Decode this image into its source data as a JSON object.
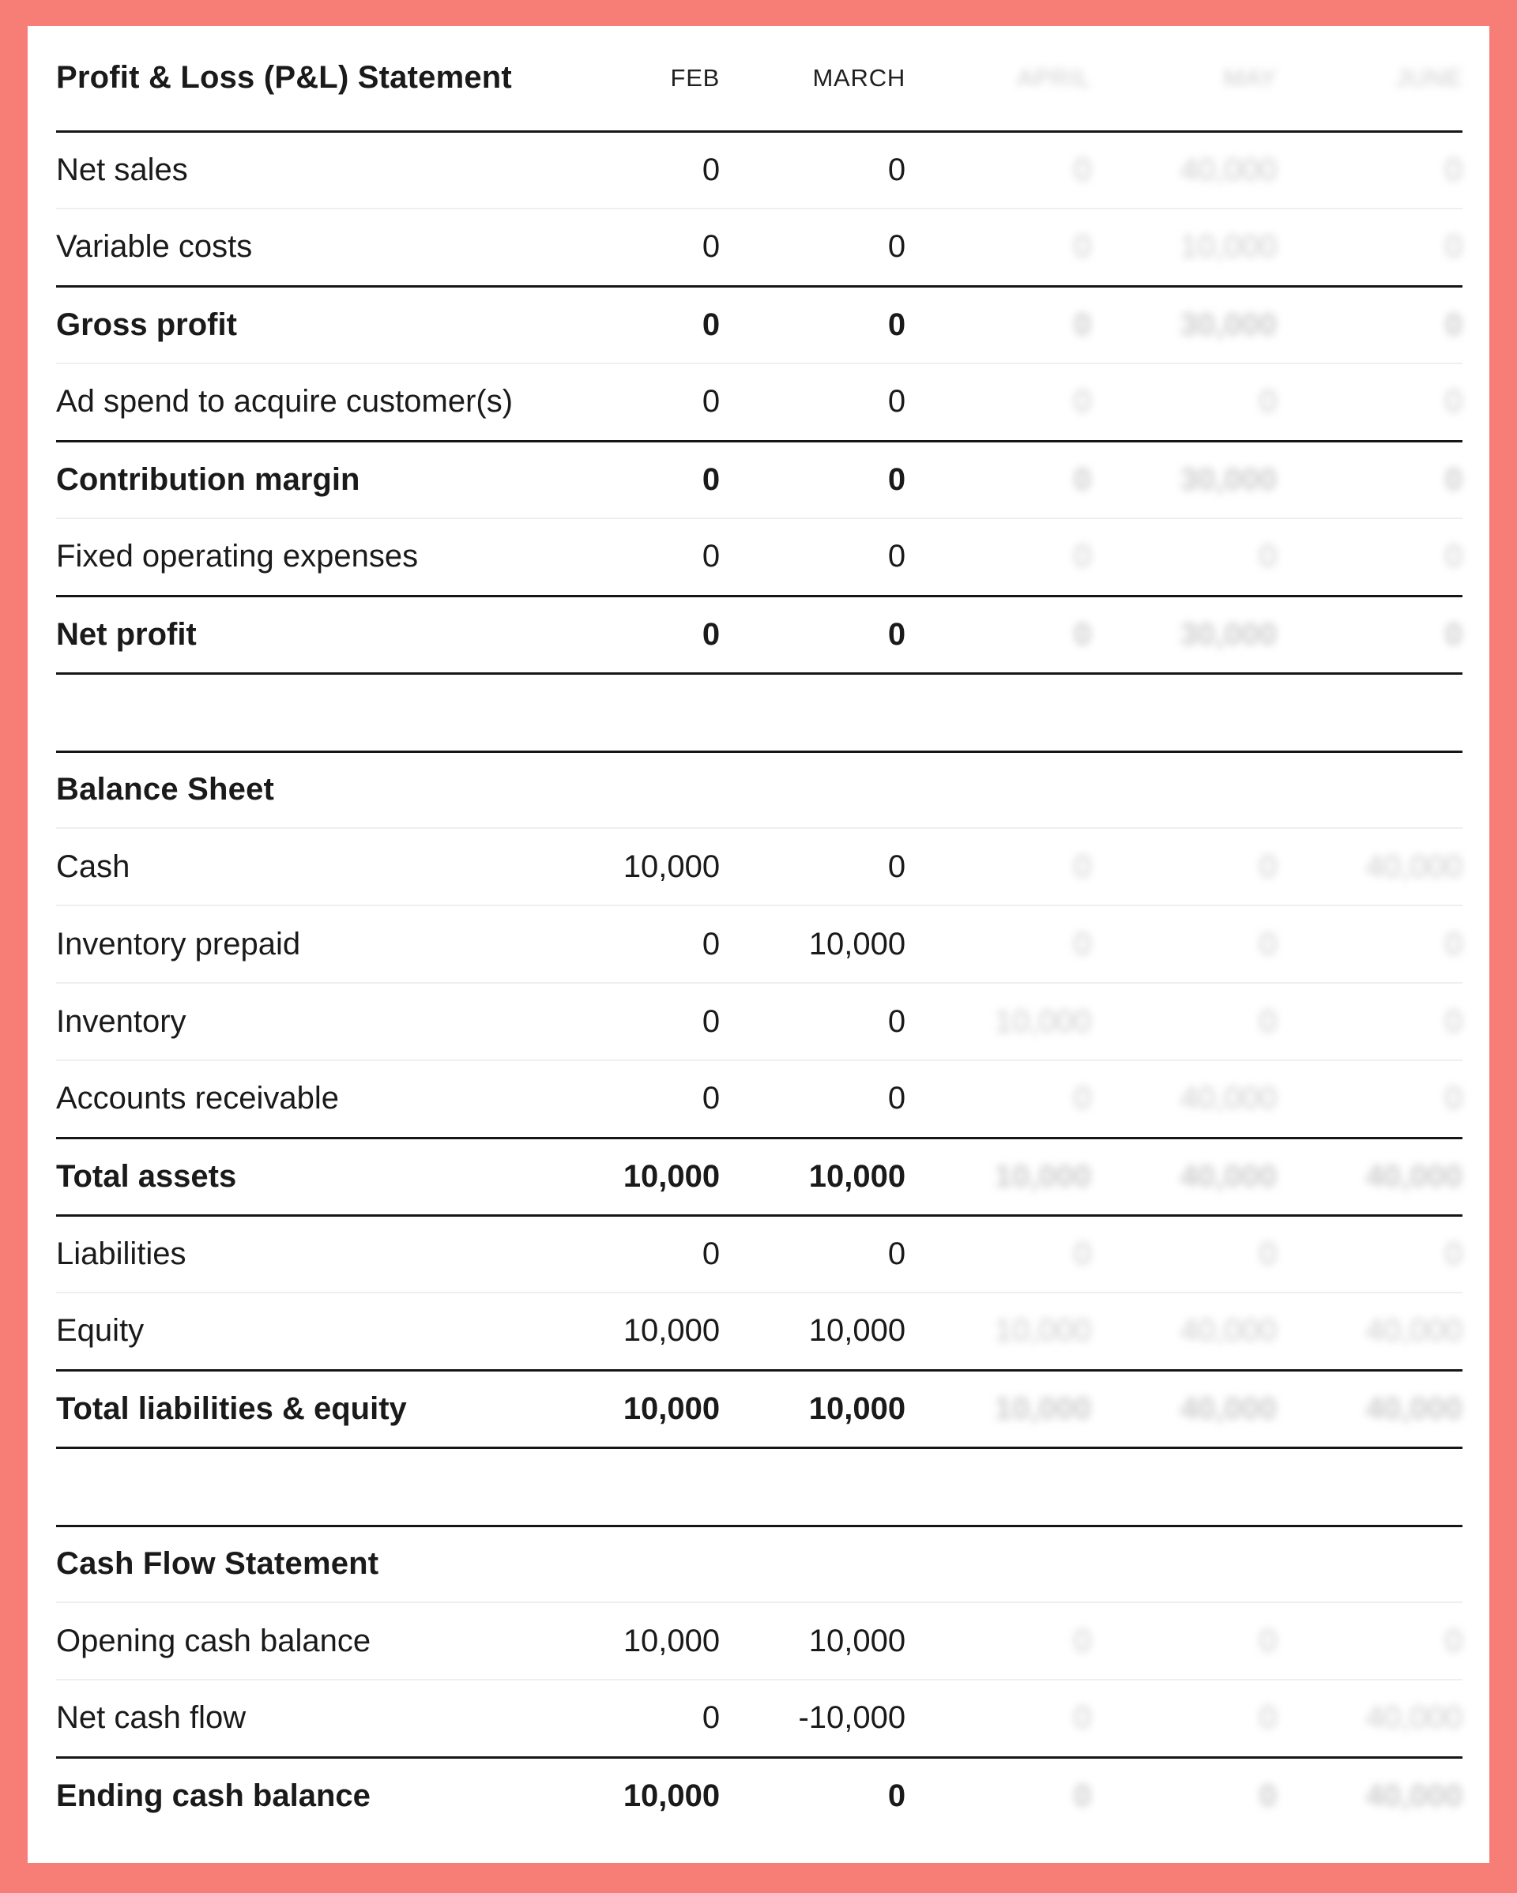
{
  "frame": {
    "border_color": "#f77d77",
    "panel_color": "#ffffff"
  },
  "colors": {
    "text": "#1a1a1a",
    "thick_rule": "#161616",
    "thin_rule": "#efefef",
    "blurred_text": "#c5c5c5"
  },
  "columns": [
    "FEB",
    "MARCH",
    "APRIL",
    "MAY",
    "JUNE"
  ],
  "blurred_columns": [
    "APRIL",
    "MAY",
    "JUNE"
  ],
  "sections": [
    {
      "title": "Profit & Loss (P&L) Statement",
      "show_column_headers": true,
      "rows": [
        {
          "label": "Net sales",
          "bold": false,
          "divider": "thin",
          "values": [
            "0",
            "0",
            "0",
            "40,000",
            "0"
          ]
        },
        {
          "label": "Variable costs",
          "bold": false,
          "divider": "thick",
          "values": [
            "0",
            "0",
            "0",
            "10,000",
            "0"
          ]
        },
        {
          "label": "Gross profit",
          "bold": true,
          "divider": "thin",
          "values": [
            "0",
            "0",
            "0",
            "30,000",
            "0"
          ]
        },
        {
          "label": "Ad spend to acquire customer(s)",
          "bold": false,
          "divider": "thick",
          "values": [
            "0",
            "0",
            "0",
            "0",
            "0"
          ]
        },
        {
          "label": "Contribution margin",
          "bold": true,
          "divider": "thin",
          "values": [
            "0",
            "0",
            "0",
            "30,000",
            "0"
          ]
        },
        {
          "label": "Fixed operating expenses",
          "bold": false,
          "divider": "thick",
          "values": [
            "0",
            "0",
            "0",
            "0",
            "0"
          ]
        },
        {
          "label": "Net profit",
          "bold": true,
          "divider": "thick",
          "values": [
            "0",
            "0",
            "0",
            "30,000",
            "0"
          ]
        }
      ]
    },
    {
      "title": "Balance Sheet",
      "show_column_headers": false,
      "rows": [
        {
          "label": "Cash",
          "bold": false,
          "divider": "thin",
          "values": [
            "10,000",
            "0",
            "0",
            "0",
            "40,000"
          ]
        },
        {
          "label": "Inventory prepaid",
          "bold": false,
          "divider": "thin",
          "values": [
            "0",
            "10,000",
            "0",
            "0",
            "0"
          ]
        },
        {
          "label": "Inventory",
          "bold": false,
          "divider": "thin",
          "values": [
            "0",
            "0",
            "10,000",
            "0",
            "0"
          ]
        },
        {
          "label": "Accounts receivable",
          "bold": false,
          "divider": "thick",
          "values": [
            "0",
            "0",
            "0",
            "40,000",
            "0"
          ]
        },
        {
          "label": "Total assets",
          "bold": true,
          "divider": "thick",
          "values": [
            "10,000",
            "10,000",
            "10,000",
            "40,000",
            "40,000"
          ]
        },
        {
          "label": "Liabilities",
          "bold": false,
          "divider": "thin",
          "values": [
            "0",
            "0",
            "0",
            "0",
            "0"
          ]
        },
        {
          "label": "Equity",
          "bold": false,
          "divider": "thick",
          "values": [
            "10,000",
            "10,000",
            "10,000",
            "40,000",
            "40,000"
          ]
        },
        {
          "label": "Total liabilities & equity",
          "bold": true,
          "divider": "thick",
          "values": [
            "10,000",
            "10,000",
            "10,000",
            "40,000",
            "40,000"
          ]
        }
      ]
    },
    {
      "title": "Cash Flow Statement",
      "show_column_headers": false,
      "rows": [
        {
          "label": "Opening cash balance",
          "bold": false,
          "divider": "thin",
          "values": [
            "10,000",
            "10,000",
            "0",
            "0",
            "0"
          ]
        },
        {
          "label": "Net cash flow",
          "bold": false,
          "divider": "thick",
          "values": [
            "0",
            "-10,000",
            "0",
            "0",
            "40,000"
          ]
        },
        {
          "label": "Ending cash balance",
          "bold": true,
          "divider": "none",
          "values": [
            "10,000",
            "0",
            "0",
            "0",
            "40,000"
          ]
        }
      ]
    }
  ]
}
